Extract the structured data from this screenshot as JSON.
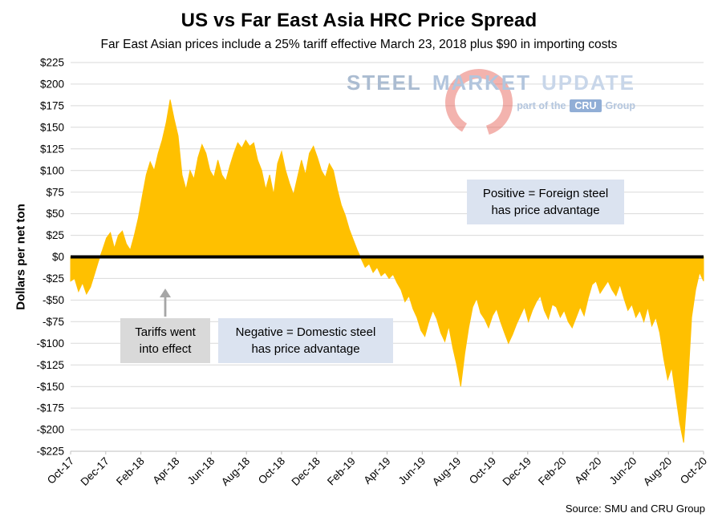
{
  "title": "US vs Far East Asia HRC Price Spread",
  "subtitle": "Far East Asian prices include a 25% tariff effective March 23, 2018 plus $90 in importing costs",
  "ylabel": "Dollars per net ton",
  "source": "Source: SMU and CRU Group",
  "watermark": {
    "steel": "STEEL",
    "market": "MARKET",
    "update": "UPDATE",
    "tagline_prefix": "part of the",
    "cru": "CRU",
    "group": "Group"
  },
  "annotations": {
    "positive_line1": "Positive = Foreign steel",
    "positive_line2": "has price advantage",
    "negative_line1": "Negative = Domestic steel",
    "negative_line2": "has price advantage",
    "tariff_line1": "Tariffs went",
    "tariff_line2": "into effect"
  },
  "colors": {
    "area": "#FFC000",
    "zero_line": "#000000",
    "gridline": "#d9d9d9",
    "axis_line": "#bfbfbf",
    "annotation_blue": "#dbe3f0",
    "annotation_gray": "#d9d9d9",
    "arrow_gray": "#a6a6a6",
    "watermark_blue": "#b2c5dd",
    "watermark_red": "#e4564c",
    "cru_badge": "#91aed6"
  },
  "chart_data": {
    "type": "area",
    "title": "US vs Far East Asia HRC Price Spread",
    "ylabel": "Dollars per net ton",
    "ylim": [
      -225,
      225
    ],
    "y_ticks": [
      225,
      200,
      175,
      150,
      125,
      100,
      75,
      50,
      25,
      0,
      -25,
      -50,
      -75,
      -100,
      -125,
      -150,
      -175,
      -200,
      -225
    ],
    "x_tick_labels": [
      "Oct-17",
      "Dec-17",
      "Feb-18",
      "Apr-18",
      "Jun-18",
      "Aug-18",
      "Oct-18",
      "Dec-18",
      "Feb-19",
      "Apr-19",
      "Jun-19",
      "Aug-19",
      "Oct-19",
      "Dec-19",
      "Feb-20",
      "Apr-20",
      "Jun-20",
      "Aug-20",
      "Oct-20"
    ],
    "x_tick_month_step": 2,
    "total_months": 36,
    "series_name": "US minus Far East Asia HRC price spread ($ per net ton, weekly)",
    "values": [
      -28,
      -25,
      -40,
      -30,
      -43,
      -35,
      -20,
      -5,
      8,
      22,
      28,
      10,
      25,
      30,
      15,
      8,
      25,
      45,
      70,
      95,
      110,
      100,
      120,
      135,
      155,
      182,
      160,
      140,
      95,
      78,
      100,
      90,
      115,
      130,
      120,
      100,
      92,
      112,
      95,
      88,
      105,
      120,
      132,
      126,
      135,
      128,
      132,
      112,
      100,
      78,
      95,
      72,
      108,
      122,
      100,
      85,
      72,
      92,
      112,
      95,
      120,
      128,
      115,
      100,
      92,
      108,
      100,
      78,
      60,
      48,
      32,
      20,
      8,
      -2,
      -12,
      -8,
      -18,
      -12,
      -22,
      -18,
      -25,
      -20,
      -30,
      -38,
      -52,
      -45,
      -60,
      -70,
      -85,
      -92,
      -75,
      -62,
      -72,
      -88,
      -98,
      -80,
      -105,
      -125,
      -150,
      -112,
      -82,
      -58,
      -48,
      -65,
      -72,
      -82,
      -68,
      -60,
      -75,
      -88,
      -100,
      -90,
      -78,
      -68,
      -58,
      -75,
      -62,
      -52,
      -45,
      -62,
      -72,
      -55,
      -58,
      -70,
      -62,
      -75,
      -82,
      -70,
      -58,
      -68,
      -48,
      -32,
      -28,
      -42,
      -35,
      -28,
      -38,
      -45,
      -32,
      -48,
      -62,
      -55,
      -70,
      -62,
      -75,
      -58,
      -80,
      -70,
      -88,
      -118,
      -142,
      -128,
      -160,
      -192,
      -215,
      -150,
      -70,
      -38,
      -18,
      -28
    ]
  }
}
